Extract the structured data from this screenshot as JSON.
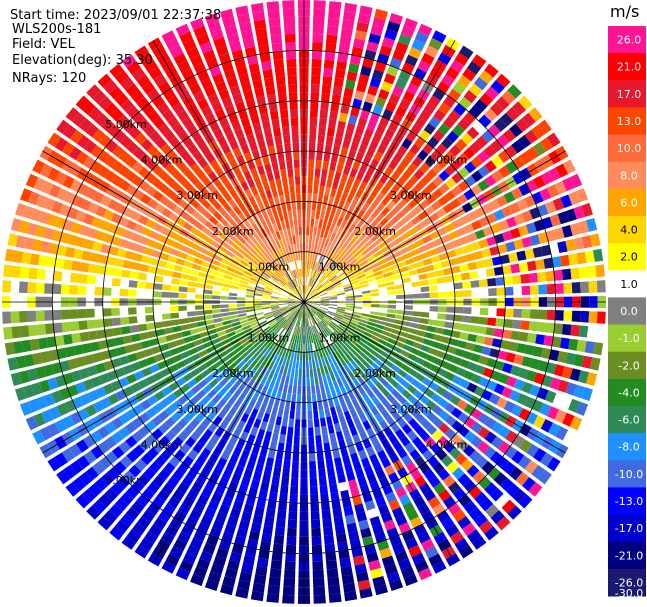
{
  "chart_data": {
    "type": "ppi_scan",
    "info": {
      "start_time_label": "Start time:",
      "start_time": "2023/09/01 22:37:38",
      "instrument": "WLS200s-181",
      "field_label": "Field:",
      "field": "VEL",
      "elevation_label": "Elevation(deg):",
      "elevation": "35.30",
      "nrays_label": "NRays:",
      "nrays": "120"
    },
    "range_unit": "km",
    "max_range_km": 6.0,
    "range_rings_km": [
      1.0,
      2.0,
      3.0,
      4.0,
      5.0
    ],
    "range_labels": [
      "1.00km",
      "2.00km",
      "3.00km",
      "4.00km",
      "5.00km"
    ],
    "colorbar": {
      "unit": "m/s",
      "ticks": [
        "26.0",
        "21.0",
        "17.0",
        "13.0",
        "10.0",
        "8.0",
        "6.0",
        "4.0",
        "2.0",
        "1.0",
        "0.0",
        "-1.0",
        "-2.0",
        "-4.0",
        "-6.0",
        "-8.0",
        "-10.0",
        "-13.0",
        "-17.0",
        "-21.0",
        "-26.0",
        "-30.0"
      ],
      "colors": [
        "#ff1493",
        "#ff0000",
        "#e8182c",
        "#ff4400",
        "#ff6a3a",
        "#ff8c5a",
        "#ffa500",
        "#ffd700",
        "#ffff00",
        "#ffffff",
        "#808080",
        "#9acd32",
        "#6b8e23",
        "#228b22",
        "#2e8b57",
        "#1e90ff",
        "#4169e1",
        "#0000ff",
        "#0000cd",
        "#000080",
        "#191970"
      ]
    },
    "velocity_pattern": {
      "description": "radial velocity field, positive (away) in upper half, negative (toward) in lower half",
      "peak_positive_ms": 21.0,
      "peak_negative_ms": -26.0,
      "zero_line_direction": "east-west"
    }
  }
}
